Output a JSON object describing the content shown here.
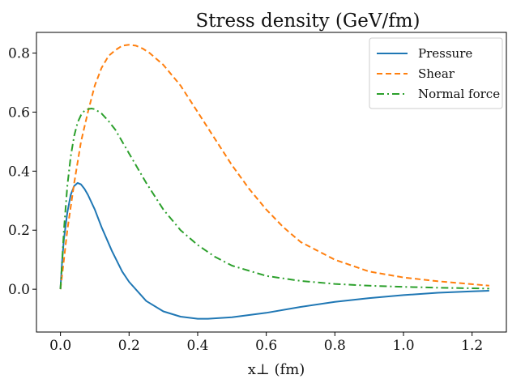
{
  "chart_data": {
    "type": "line",
    "title": "Stress density (GeV/fm)",
    "xlabel": "x⊥ (fm)",
    "ylabel": "",
    "xlim": [
      -0.07,
      1.3
    ],
    "ylim": [
      -0.145,
      0.87
    ],
    "xticks": [
      0.0,
      0.2,
      0.4,
      0.6,
      0.8,
      1.0,
      1.2
    ],
    "xtick_labels": [
      "0.0",
      "0.2",
      "0.4",
      "0.6",
      "0.8",
      "1.0",
      "1.2"
    ],
    "yticks": [
      0.0,
      0.2,
      0.4,
      0.6,
      0.8
    ],
    "ytick_labels": [
      "0.0",
      "0.2",
      "0.4",
      "0.6",
      "0.8"
    ],
    "grid": false,
    "legend_position": "top-right",
    "series": [
      {
        "name": "Pressure",
        "color": "#1f77b4",
        "dash": "solid",
        "x": [
          0.0,
          0.005,
          0.01,
          0.02,
          0.03,
          0.04,
          0.05,
          0.06,
          0.07,
          0.08,
          0.1,
          0.12,
          0.15,
          0.18,
          0.2,
          0.25,
          0.3,
          0.35,
          0.4,
          0.43,
          0.5,
          0.6,
          0.7,
          0.8,
          0.9,
          1.0,
          1.1,
          1.2,
          1.25
        ],
        "y": [
          0.0,
          0.1,
          0.17,
          0.26,
          0.32,
          0.35,
          0.36,
          0.355,
          0.34,
          0.32,
          0.27,
          0.21,
          0.13,
          0.06,
          0.025,
          -0.04,
          -0.075,
          -0.093,
          -0.1,
          -0.1,
          -0.095,
          -0.08,
          -0.06,
          -0.043,
          -0.03,
          -0.02,
          -0.012,
          -0.007,
          -0.005
        ]
      },
      {
        "name": "Shear",
        "color": "#ff7f0e",
        "dash": "dashed",
        "x": [
          0.0,
          0.01,
          0.02,
          0.04,
          0.06,
          0.08,
          0.1,
          0.12,
          0.14,
          0.16,
          0.18,
          0.2,
          0.22,
          0.24,
          0.26,
          0.3,
          0.35,
          0.4,
          0.45,
          0.5,
          0.55,
          0.6,
          0.65,
          0.7,
          0.8,
          0.9,
          1.0,
          1.1,
          1.2,
          1.25
        ],
        "y": [
          0.0,
          0.1,
          0.2,
          0.36,
          0.5,
          0.6,
          0.69,
          0.75,
          0.79,
          0.81,
          0.825,
          0.828,
          0.825,
          0.815,
          0.8,
          0.76,
          0.69,
          0.6,
          0.51,
          0.42,
          0.34,
          0.27,
          0.21,
          0.16,
          0.1,
          0.06,
          0.04,
          0.027,
          0.017,
          0.012
        ]
      },
      {
        "name": "Normal force",
        "color": "#2ca02c",
        "dash": "dashdot",
        "x": [
          0.0,
          0.005,
          0.01,
          0.02,
          0.03,
          0.04,
          0.05,
          0.06,
          0.07,
          0.08,
          0.09,
          0.1,
          0.12,
          0.14,
          0.16,
          0.2,
          0.25,
          0.3,
          0.35,
          0.4,
          0.45,
          0.5,
          0.6,
          0.7,
          0.8,
          0.9,
          1.0,
          1.1,
          1.2,
          1.25
        ],
        "y": [
          0.0,
          0.1,
          0.2,
          0.35,
          0.45,
          0.52,
          0.565,
          0.59,
          0.605,
          0.61,
          0.612,
          0.61,
          0.595,
          0.57,
          0.54,
          0.46,
          0.36,
          0.27,
          0.2,
          0.15,
          0.11,
          0.08,
          0.045,
          0.028,
          0.018,
          0.012,
          0.008,
          0.005,
          0.003,
          0.002
        ]
      }
    ]
  }
}
